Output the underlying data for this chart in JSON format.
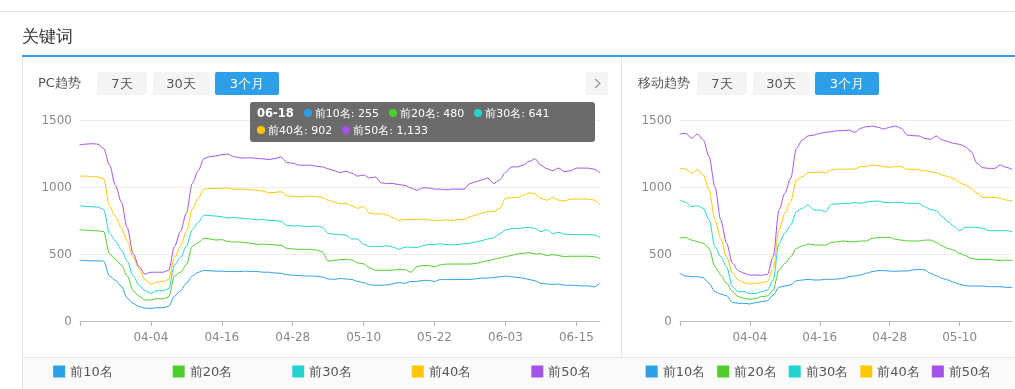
{
  "chart_data": [
    {
      "type": "line",
      "title": "PC趋势",
      "annotations": [
        "7天",
        "30天",
        "3个月",
        "06-18",
        "前10名: 255",
        "前20名: 480",
        "前30名: 641",
        "前40名: 902",
        "前50名: 1,133",
        "关键词"
      ],
      "categories": [
        null,
        null,
        null,
        null,
        null,
        null,
        null,
        null,
        null,
        null,
        null,
        null,
        "04-04",
        null,
        null,
        null,
        null,
        null,
        null,
        null,
        null,
        null,
        null,
        null,
        "04-16",
        null,
        null,
        null,
        null,
        null,
        null,
        null,
        null,
        null,
        null,
        null,
        "04-28",
        null,
        null,
        null,
        null,
        null,
        null,
        null,
        null,
        null,
        null,
        null,
        "05-10",
        null,
        null,
        null,
        null,
        null,
        null,
        null,
        null,
        null,
        null,
        null,
        "05-22",
        null,
        null,
        null,
        null,
        null,
        null,
        null,
        null,
        null,
        null,
        null,
        "06-03",
        null,
        null,
        null,
        null,
        null,
        null,
        null,
        null,
        null,
        null,
        null,
        "06-15",
        null,
        null,
        null,
        null
      ],
      "ylim": [
        0,
        1500
      ],
      "yticks": [
        0,
        500,
        1000,
        1500
      ],
      "grid": "y",
      "legend": "bottom",
      "marker": "none",
      "line_style": "solid",
      "series": [
        {
          "name": "前10名",
          "color": "#2d9fe8",
          "values": [
            452,
            450,
            449,
            449,
            447,
            336,
            303,
            259,
            171,
            130,
            108,
            96,
            94,
            99,
            99,
            110,
            185,
            226,
            281,
            336,
            364,
            378,
            375,
            372,
            372,
            369,
            369,
            369,
            372,
            369,
            369,
            364,
            364,
            358,
            356,
            345,
            342,
            339,
            336,
            336,
            334,
            328,
            314,
            311,
            317,
            314,
            309,
            295,
            287,
            270,
            267,
            267,
            270,
            278,
            287,
            281,
            295,
            295,
            303,
            303,
            295,
            309,
            309,
            309,
            310,
            310,
            310,
            315,
            320,
            320,
            325,
            330,
            335,
            330,
            325,
            320,
            310,
            300,
            281,
            276,
            273,
            276,
            267,
            267,
            265,
            262,
            262,
            255,
            281
          ]
        },
        {
          "name": "前20名",
          "color": "#4ece2a",
          "values": [
            681,
            678,
            675,
            673,
            667,
            502,
            460,
            419,
            336,
            226,
            185,
            157,
            157,
            168,
            165,
            179,
            336,
            364,
            419,
            557,
            585,
            618,
            612,
            604,
            607,
            593,
            590,
            590,
            585,
            579,
            571,
            574,
            571,
            568,
            565,
            543,
            538,
            535,
            535,
            535,
            529,
            516,
            447,
            452,
            458,
            460,
            455,
            433,
            427,
            397,
            378,
            378,
            378,
            380,
            386,
            383,
            364,
            405,
            414,
            414,
            405,
            419,
            425,
            425,
            425,
            425,
            425,
            430,
            440,
            450,
            460,
            470,
            480,
            490,
            500,
            505,
            510,
            500,
            502,
            488,
            496,
            488,
            480,
            483,
            483,
            483,
            483,
            480,
            466
          ]
        },
        {
          "name": "前30名",
          "color": "#22d3d0",
          "values": [
            860,
            855,
            852,
            850,
            833,
            653,
            598,
            529,
            447,
            336,
            267,
            226,
            207,
            226,
            226,
            240,
            419,
            474,
            557,
            681,
            736,
            791,
            786,
            783,
            778,
            769,
            772,
            769,
            764,
            761,
            755,
            758,
            750,
            750,
            744,
            714,
            709,
            711,
            706,
            706,
            709,
            700,
            653,
            648,
            645,
            640,
            612,
            612,
            571,
            557,
            557,
            557,
            562,
            551,
            535,
            551,
            551,
            549,
            562,
            571,
            571,
            576,
            571,
            568,
            571,
            576,
            580,
            590,
            600,
            612,
            620,
            650,
            680,
            690,
            690,
            695,
            700,
            690,
            667,
            681,
            653,
            662,
            648,
            645,
            645,
            645,
            645,
            641,
            626
          ]
        },
        {
          "name": "前40名",
          "color": "#ffc700",
          "values": [
            1081,
            1081,
            1078,
            1075,
            1061,
            860,
            778,
            695,
            598,
            474,
            392,
            309,
            276,
            290,
            295,
            309,
            474,
            557,
            667,
            833,
            915,
            984,
            990,
            990,
            990,
            993,
            984,
            984,
            982,
            979,
            976,
            968,
            957,
            960,
            965,
            937,
            929,
            926,
            929,
            932,
            929,
            921,
            902,
            888,
            874,
            877,
            860,
            841,
            855,
            805,
            800,
            800,
            791,
            769,
            750,
            758,
            758,
            758,
            761,
            755,
            750,
            750,
            755,
            750,
            758,
            758,
            778,
            791,
            805,
            816,
            816,
            838,
            915,
            921,
            921,
            937,
            957,
            948,
            915,
            902,
            921,
            902,
            896,
            910,
            910,
            910,
            910,
            902,
            866
          ]
        },
        {
          "name": "前50名",
          "color": "#a552ea",
          "values": [
            1315,
            1320,
            1323,
            1320,
            1288,
            1163,
            1012,
            888,
            695,
            502,
            405,
            350,
            364,
            364,
            364,
            378,
            557,
            667,
            805,
            1026,
            1122,
            1213,
            1227,
            1232,
            1241,
            1246,
            1227,
            1218,
            1216,
            1218,
            1213,
            1210,
            1205,
            1213,
            1224,
            1183,
            1177,
            1163,
            1163,
            1163,
            1155,
            1150,
            1136,
            1122,
            1108,
            1117,
            1103,
            1081,
            1089,
            1067,
            1075,
            1031,
            1026,
            1026,
            1017,
            1012,
            993,
            976,
            993,
            993,
            984,
            984,
            979,
            984,
            984,
            984,
            1026,
            1039,
            1053,
            1067,
            1026,
            1053,
            1108,
            1150,
            1150,
            1163,
            1191,
            1210,
            1163,
            1136,
            1122,
            1141,
            1114,
            1122,
            1141,
            1141,
            1141,
            1133,
            1103
          ]
        }
      ]
    },
    {
      "type": "line",
      "title": "移动趋势",
      "annotations": [
        "7天",
        "30天",
        "3个月"
      ],
      "categories": [
        null,
        null,
        null,
        null,
        null,
        null,
        null,
        null,
        null,
        null,
        null,
        null,
        "04-04",
        null,
        null,
        null,
        null,
        null,
        null,
        null,
        null,
        null,
        null,
        null,
        "04-16",
        null,
        null,
        null,
        null,
        null,
        null,
        null,
        null,
        null,
        null,
        null,
        "04-28",
        null,
        null,
        null,
        null,
        null,
        null,
        null,
        null,
        null,
        null,
        null,
        "05-10",
        null,
        null,
        null,
        null,
        null,
        null,
        null,
        null,
        null
      ],
      "ylim": [
        0,
        1500
      ],
      "yticks": [
        0,
        500,
        1000,
        1500
      ],
      "grid": "y",
      "legend": "bottom",
      "marker": "none",
      "line_style": "solid",
      "series": [
        {
          "name": "前10名",
          "color": "#2d9fe8",
          "values": [
            356,
            336,
            331,
            331,
            323,
            281,
            219,
            201,
            189,
            139,
            132,
            132,
            127,
            137,
            144,
            152,
            194,
            251,
            261,
            269,
            301,
            306,
            311,
            306,
            306,
            311,
            311,
            313,
            318,
            331,
            336,
            343,
            356,
            368,
            376,
            376,
            373,
            371,
            373,
            373,
            381,
            386,
            381,
            356,
            338,
            318,
            306,
            289,
            274,
            264,
            261,
            261,
            261,
            256,
            256,
            256,
            251,
            251
          ]
        },
        {
          "name": "前20名",
          "color": "#4ece2a",
          "values": [
            622,
            622,
            604,
            592,
            580,
            542,
            405,
            343,
            281,
            219,
            182,
            169,
            162,
            169,
            182,
            187,
            231,
            381,
            430,
            480,
            542,
            560,
            575,
            567,
            567,
            567,
            587,
            590,
            597,
            592,
            592,
            597,
            597,
            617,
            622,
            622,
            624,
            609,
            604,
            597,
            597,
            597,
            604,
            604,
            587,
            560,
            542,
            530,
            505,
            488,
            468,
            460,
            460,
            460,
            455,
            450,
            455,
            450
          ]
        },
        {
          "name": "前30名",
          "color": "#22d3d0",
          "values": [
            903,
            886,
            853,
            861,
            841,
            754,
            555,
            480,
            405,
            256,
            219,
            219,
            204,
            206,
            219,
            231,
            306,
            580,
            654,
            716,
            816,
            841,
            866,
            828,
            828,
            816,
            871,
            873,
            878,
            878,
            883,
            878,
            888,
            893,
            896,
            886,
            883,
            886,
            886,
            878,
            878,
            878,
            853,
            833,
            823,
            779,
            741,
            709,
            674,
            699,
            699,
            699,
            692,
            674,
            674,
            674,
            674,
            667
          ]
        },
        {
          "name": "前40名",
          "color": "#ffc700",
          "values": [
            1139,
            1134,
            1102,
            1127,
            1090,
            978,
            754,
            617,
            480,
            356,
            306,
            286,
            276,
            281,
            286,
            294,
            393,
            679,
            803,
            891,
            1052,
            1077,
            1107,
            1107,
            1112,
            1107,
            1127,
            1132,
            1132,
            1134,
            1134,
            1152,
            1152,
            1164,
            1159,
            1152,
            1147,
            1152,
            1152,
            1132,
            1132,
            1127,
            1122,
            1114,
            1107,
            1090,
            1077,
            1065,
            1032,
            1015,
            990,
            953,
            923,
            923,
            923,
            915,
            903,
            896
          ]
        },
        {
          "name": "前50名",
          "color": "#a552ea",
          "values": [
            1396,
            1400,
            1363,
            1396,
            1351,
            1226,
            1002,
            754,
            580,
            430,
            376,
            356,
            343,
            343,
            341,
            348,
            480,
            828,
            953,
            1065,
            1289,
            1351,
            1381,
            1388,
            1400,
            1408,
            1413,
            1420,
            1420,
            1425,
            1408,
            1438,
            1450,
            1455,
            1445,
            1433,
            1445,
            1455,
            1438,
            1388,
            1383,
            1381,
            1363,
            1356,
            1381,
            1351,
            1338,
            1326,
            1318,
            1301,
            1264,
            1177,
            1144,
            1139,
            1139,
            1164,
            1147,
            1132
          ]
        }
      ]
    }
  ]
}
